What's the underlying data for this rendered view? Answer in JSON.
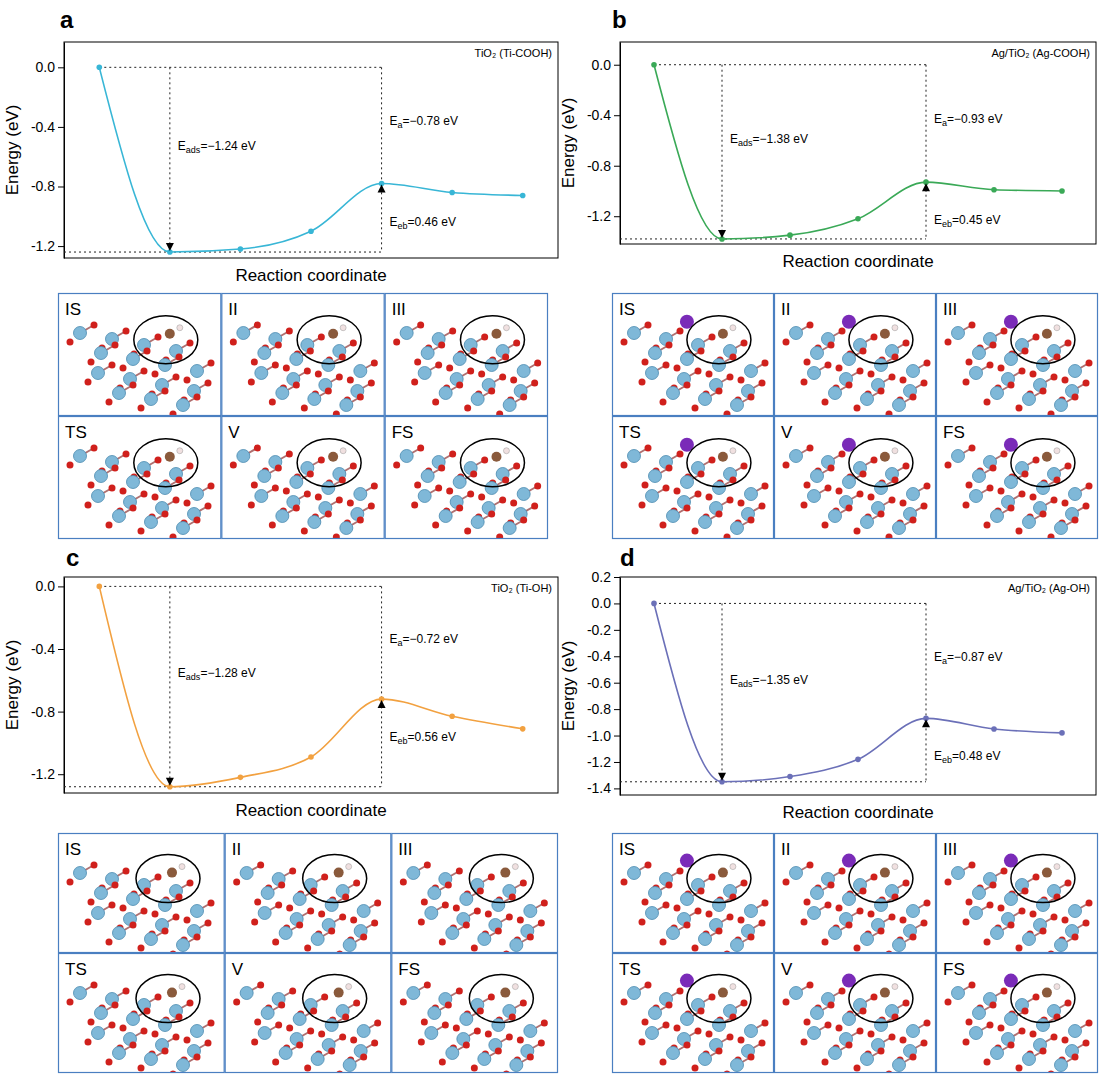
{
  "chart_data": [
    {
      "type": "line",
      "panel": "a",
      "title": "TiO₂ (Ti-COOH)",
      "x_label": "Reaction coordinate",
      "y_label": "Energy (eV)",
      "x": [
        0,
        1,
        2,
        3,
        4,
        5,
        6
      ],
      "values": [
        0,
        -1.24,
        -1.22,
        -1.1,
        -0.78,
        -0.84,
        -0.86
      ],
      "color": "#38b6d6",
      "marker": "circle",
      "xlim": [
        -0.5,
        6.5
      ],
      "ylim": [
        -1.28,
        0.17
      ],
      "yticks": [
        {
          "value": 0,
          "label": "0.0"
        },
        -0.4,
        -0.8,
        -1.2
      ],
      "tick_labels": "y",
      "annotations": [
        {
          "main": "E",
          "sub": "ads",
          "text": "=−1.24 eV"
        },
        {
          "main": "E",
          "sub": "a",
          "text": "=−0.78 eV"
        },
        {
          "main": "E",
          "sub": "eb",
          "text": "=0.46 eV"
        }
      ],
      "structure_labels": [
        "IS",
        "II",
        "III",
        "TS",
        "V",
        "FS"
      ]
    },
    {
      "type": "line",
      "panel": "b",
      "title": "Ag/TiO₂ (Ag-COOH)",
      "x_label": "Reaction coordinate",
      "y_label": "Energy (eV)",
      "x": [
        0,
        1,
        2,
        3,
        4,
        5,
        6
      ],
      "values": [
        0,
        -1.38,
        -1.35,
        -1.22,
        -0.93,
        -0.99,
        -1.0
      ],
      "color": "#3aa957",
      "marker": "circle",
      "xlim": [
        -0.5,
        6.5
      ],
      "ylim": [
        -1.42,
        0.18
      ],
      "yticks": [
        {
          "value": 0,
          "label": "0.0"
        },
        -0.4,
        -0.8,
        -1.2
      ],
      "tick_labels": "y",
      "annotations": [
        {
          "main": "E",
          "sub": "ads",
          "text": "=−1.38 eV"
        },
        {
          "main": "E",
          "sub": "a",
          "text": "=−0.93 eV"
        },
        {
          "main": "E",
          "sub": "eb",
          "text": "=0.45 eV"
        }
      ],
      "structure_labels": [
        "IS",
        "II",
        "III",
        "TS",
        "V",
        "FS"
      ]
    },
    {
      "type": "line",
      "panel": "c",
      "title": "TiO₂ (Ti-OH)",
      "x_label": "Reaction coordinate",
      "y_label": "Energy (eV)",
      "x": [
        0,
        1,
        2,
        3,
        4,
        5,
        6
      ],
      "values": [
        0,
        -1.28,
        -1.22,
        -1.09,
        -0.72,
        -0.83,
        -0.91
      ],
      "color": "#f2a140",
      "marker": "circle",
      "xlim": [
        -0.5,
        6.5
      ],
      "ylim": [
        -1.32,
        0.06
      ],
      "yticks": [
        {
          "value": 0,
          "label": "0.0"
        },
        -0.4,
        -0.8,
        -1.2
      ],
      "tick_labels": "y",
      "annotations": [
        {
          "main": "E",
          "sub": "ads",
          "text": "=−1.28 eV"
        },
        {
          "main": "E",
          "sub": "a",
          "text": "=−0.72 eV"
        },
        {
          "main": "E",
          "sub": "eb",
          "text": "=0.56 eV"
        }
      ],
      "structure_labels": [
        "IS",
        "II",
        "III",
        "TS",
        "V",
        "FS"
      ]
    },
    {
      "type": "line",
      "panel": "d",
      "title": "Ag/TiO₂ (Ag-OH)",
      "x_label": "Reaction coordinate",
      "y_label": "Energy (eV)",
      "x": [
        0,
        1,
        2,
        3,
        4,
        5,
        6
      ],
      "values": [
        0,
        -1.35,
        -1.31,
        -1.18,
        -0.87,
        -0.95,
        -0.98
      ],
      "color": "#6b70b8",
      "marker": "circle",
      "xlim": [
        -0.5,
        6.5
      ],
      "ylim": [
        -1.45,
        0.2
      ],
      "yticks": [
        0.2,
        {
          "value": 0,
          "label": "0.0"
        },
        -0.2,
        -0.4,
        -0.6,
        -0.8,
        {
          "value": -1,
          "label": "-1.0"
        },
        -1.2,
        -1.4
      ],
      "tick_labels": "y",
      "annotations": [
        {
          "main": "E",
          "sub": "ads",
          "text": "=−1.35 eV"
        },
        {
          "main": "E",
          "sub": "a",
          "text": "=−0.87 eV"
        },
        {
          "main": "E",
          "sub": "eb",
          "text": "=0.48 eV"
        }
      ],
      "structure_labels": [
        "IS",
        "II",
        "III",
        "TS",
        "V",
        "FS"
      ]
    }
  ]
}
